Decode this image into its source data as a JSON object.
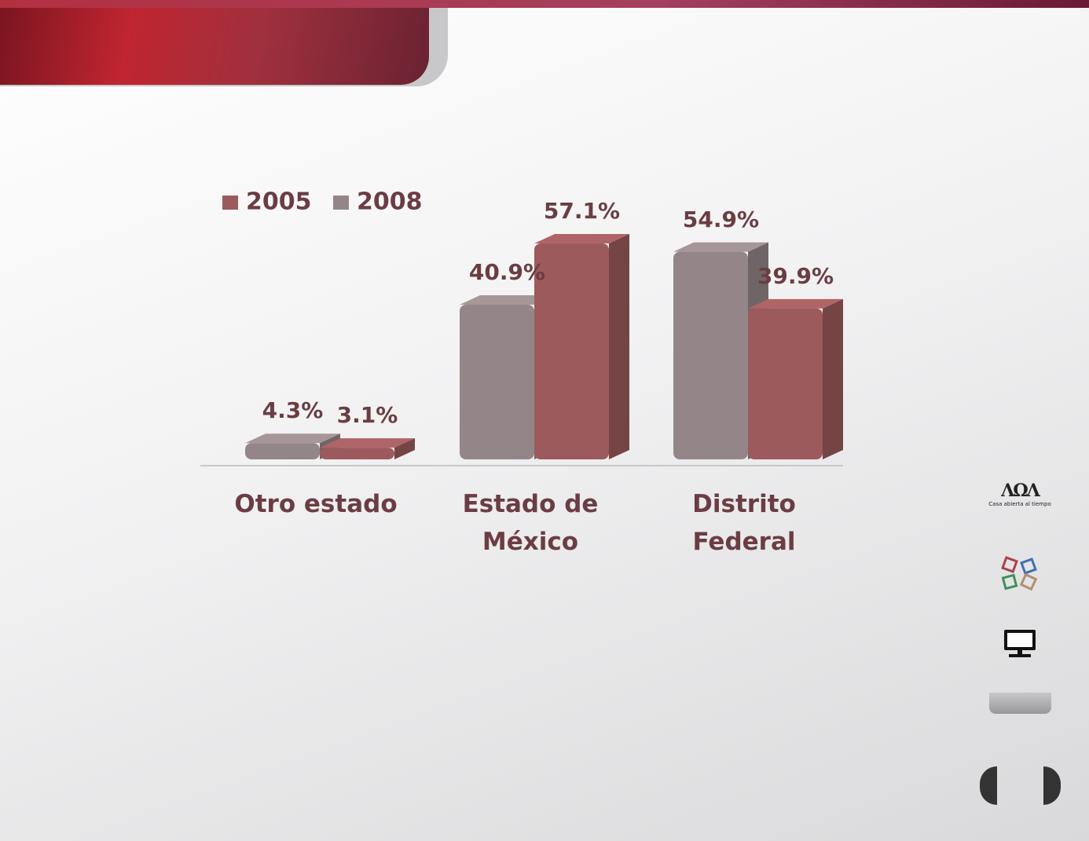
{
  "chart_data": {
    "type": "bar",
    "categories": [
      "Otro estado",
      "Estado de México",
      "Distrito Federal"
    ],
    "series": [
      {
        "name": "2005",
        "color": "#9c5a5c",
        "values": [
          3.1,
          57.1,
          39.9
        ],
        "value_labels": [
          "3.1%",
          "57.1%",
          "39.9%"
        ]
      },
      {
        "name": "2008",
        "color": "#948688",
        "values": [
          4.3,
          40.9,
          54.9
        ],
        "value_labels": [
          "4.3%",
          "40.9%",
          "54.9%"
        ]
      }
    ]
  },
  "sidebar": {
    "logo_caption": "Casa abierta al tiempo"
  }
}
